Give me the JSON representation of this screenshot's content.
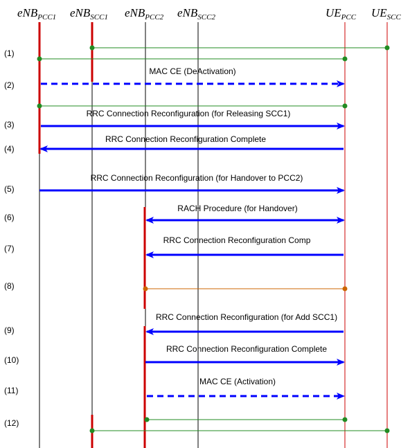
{
  "entities": [
    {
      "id": "enb_pcc1",
      "main": "eNB",
      "sub": "PCC1",
      "line_color": "#000000"
    },
    {
      "id": "enb_scc1",
      "main": "eNB",
      "sub": "SCC1",
      "line_color": "#000000"
    },
    {
      "id": "enb_pcc2",
      "main": "eNB",
      "sub": "PCC2",
      "line_color": "#000000"
    },
    {
      "id": "enb_scc2",
      "main": "eNB",
      "sub": "SCC2",
      "line_color": "#000000"
    },
    {
      "id": "ue_pcc",
      "main": "UE",
      "sub": "PCC",
      "line_color": "#cc0000"
    },
    {
      "id": "ue_scc",
      "main": "UE",
      "sub": "SCC",
      "line_color": "#cc0000"
    }
  ],
  "steps": [
    "(1)",
    "(2)",
    "(3)",
    "(4)",
    "(5)",
    "(6)",
    "(7)",
    "(8)",
    "(9)",
    "(10)",
    "(11)",
    "(12)"
  ],
  "messages": [
    {
      "id": "mac-ce-deactivation",
      "text": "MAC CE (DeActivation)",
      "from": "enb_pcc1",
      "to": "ue_pcc",
      "style": "dashed"
    },
    {
      "id": "rrc-reconfig-release-scc1",
      "text": "RRC Connection Reconfiguration (for Releasing SCC1)",
      "from": "enb_pcc1",
      "to": "ue_pcc",
      "style": "solid"
    },
    {
      "id": "rrc-reconfig-complete-1",
      "text": "RRC Connection Reconfiguration Complete",
      "from": "ue_pcc",
      "to": "enb_pcc1",
      "style": "solid"
    },
    {
      "id": "rrc-reconfig-handover-pcc2",
      "text": "RRC Connection Reconfiguration (for Handover to PCC2)",
      "from": "enb_pcc1",
      "to": "ue_pcc",
      "style": "solid"
    },
    {
      "id": "rach-procedure",
      "text": "RACH Procedure (for Handover)",
      "from": "enb_pcc2",
      "to": "ue_pcc",
      "style": "double"
    },
    {
      "id": "rrc-reconfig-comp",
      "text": "RRC Connection Reconfiguration Comp",
      "from": "ue_pcc",
      "to": "enb_pcc2",
      "style": "solid"
    },
    {
      "id": "rrc-reconfig-add-scc1",
      "text": "RRC Connection Reconfiguration (for Add SCC1)",
      "from": "ue_pcc",
      "to": "enb_pcc2",
      "style": "solid"
    },
    {
      "id": "rrc-reconfig-complete-2",
      "text": "RRC Connection Reconfiguration Complete",
      "from": "enb_pcc2",
      "to": "ue_pcc",
      "style": "solid"
    },
    {
      "id": "mac-ce-activation",
      "text": "MAC CE (Activation)",
      "from": "enb_pcc2",
      "to": "ue_pcc",
      "style": "dashed"
    }
  ],
  "connections": [
    {
      "id": "link-scc1-ue-scc",
      "from": "enb_scc1",
      "to": "ue_scc",
      "color": "#228b22"
    },
    {
      "id": "link-pcc1-ue-pcc-a",
      "from": "enb_pcc1",
      "to": "ue_pcc",
      "color": "#228b22"
    },
    {
      "id": "link-pcc1-ue-pcc-b",
      "from": "enb_pcc1",
      "to": "ue_pcc",
      "color": "#228b22"
    },
    {
      "id": "link-pcc2-ue-pcc",
      "from": "enb_pcc2",
      "to": "ue_pcc",
      "color": "#cc6600"
    },
    {
      "id": "link-pcc2-ue-pcc-final",
      "from": "enb_pcc2",
      "to": "ue_pcc",
      "color": "#228b22"
    },
    {
      "id": "link-scc1-ue-scc-final",
      "from": "enb_scc1",
      "to": "ue_scc",
      "color": "#228b22"
    }
  ],
  "colors": {
    "message": "#0000ff",
    "activation_bar": "#cc0000",
    "connection": "#228b22",
    "handover_link": "#cc6600"
  }
}
